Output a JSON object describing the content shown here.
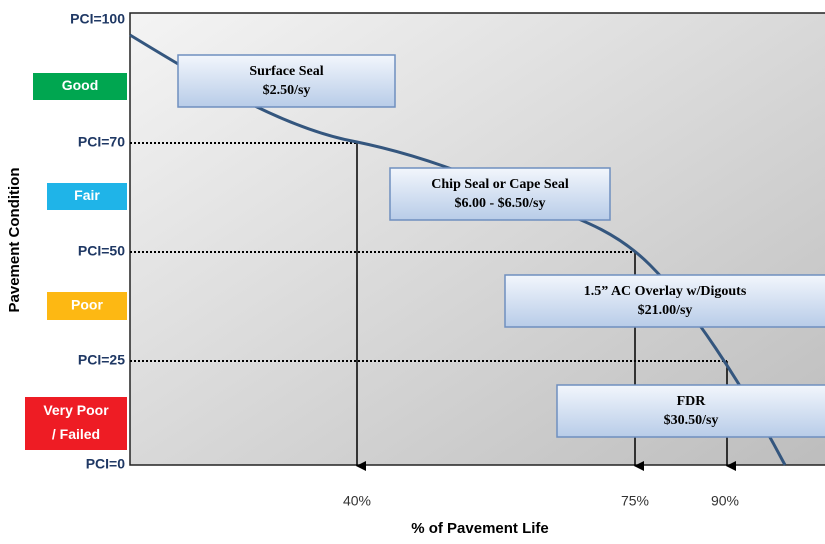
{
  "y_axis": {
    "title": "Pavement Condition",
    "levels": [
      "PCI=100",
      "PCI=70",
      "PCI=50",
      "PCI=25",
      "PCI=0"
    ],
    "conditions": [
      [
        "Good"
      ],
      [
        "Fair"
      ],
      [
        "Poor"
      ],
      [
        "Very Poor",
        "/ Failed"
      ]
    ]
  },
  "x_axis": {
    "title": "% of Pavement Life",
    "markers": [
      "40%",
      "75%",
      "90%"
    ]
  },
  "treatments": [
    {
      "name": "Surface Seal",
      "cost": "$2.50/sy"
    },
    {
      "name": "Chip Seal or Cape Seal",
      "cost": "$6.00 - $6.50/sy"
    },
    {
      "name": "1.5” AC Overlay w/Digouts",
      "cost": "$21.00/sy"
    },
    {
      "name": "FDR",
      "cost": "$30.50/sy"
    }
  ]
}
